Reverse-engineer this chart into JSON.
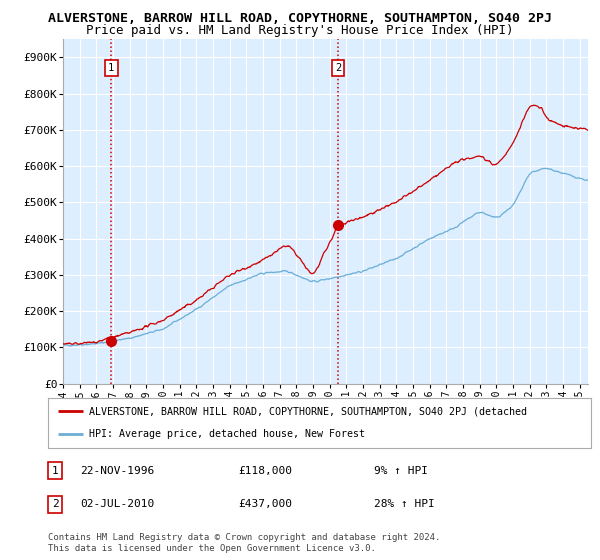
{
  "title1": "ALVERSTONE, BARROW HILL ROAD, COPYTHORNE, SOUTHAMPTON, SO40 2PJ",
  "title2": "Price paid vs. HM Land Registry's House Price Index (HPI)",
  "ylabel_ticks": [
    "£0",
    "£100K",
    "£200K",
    "£300K",
    "£400K",
    "£500K",
    "£600K",
    "£700K",
    "£800K",
    "£900K"
  ],
  "ytick_values": [
    0,
    100000,
    200000,
    300000,
    400000,
    500000,
    600000,
    700000,
    800000,
    900000
  ],
  "ylim": [
    0,
    950000
  ],
  "xlim_start": 1994.0,
  "xlim_end": 2025.5,
  "hpi_line_color": "#6baed6",
  "price_line_color": "#cc0000",
  "sale1_date": 1996.9,
  "sale1_price": 118000,
  "sale2_date": 2010.5,
  "sale2_price": 437000,
  "vline_color": "#cc0000",
  "background_color": "#ddeeff",
  "grid_color": "#ffffff",
  "legend_label1": "ALVERSTONE, BARROW HILL ROAD, COPYTHORNE, SOUTHAMPTON, SO40 2PJ (detached",
  "legend_label2": "HPI: Average price, detached house, New Forest",
  "table_row1": [
    "1",
    "22-NOV-1996",
    "£118,000",
    "9% ↑ HPI"
  ],
  "table_row2": [
    "2",
    "02-JUL-2010",
    "£437,000",
    "28% ↑ HPI"
  ],
  "footnote": "Contains HM Land Registry data © Crown copyright and database right 2024.\nThis data is licensed under the Open Government Licence v3.0.",
  "title_fontsize": 9.5,
  "subtitle_fontsize": 9,
  "tick_fontsize": 8,
  "hpi_key_years": [
    1994.0,
    1996.0,
    1998.0,
    2000.0,
    2002.0,
    2004.0,
    2006.0,
    2007.5,
    2009.0,
    2010.5,
    2012.0,
    2014.0,
    2016.0,
    2017.5,
    2019.0,
    2020.0,
    2021.0,
    2022.0,
    2023.0,
    2024.0,
    2025.5
  ],
  "hpi_key_vals": [
    105000,
    110000,
    125000,
    150000,
    205000,
    270000,
    305000,
    310000,
    280000,
    295000,
    310000,
    345000,
    400000,
    430000,
    475000,
    455000,
    490000,
    580000,
    595000,
    580000,
    560000
  ],
  "price_key_years": [
    1994.0,
    1995.0,
    1996.0,
    1997.0,
    1998.0,
    2000.0,
    2002.0,
    2004.0,
    2006.0,
    2007.5,
    2009.0,
    2010.5,
    2011.0,
    2012.0,
    2013.0,
    2014.0,
    2016.0,
    2017.5,
    2019.0,
    2020.0,
    2021.0,
    2022.0,
    2022.8,
    2023.0,
    2024.0,
    2025.5
  ],
  "price_key_vals": [
    108000,
    110000,
    115000,
    128000,
    140000,
    175000,
    230000,
    300000,
    340000,
    385000,
    295000,
    435000,
    445000,
    460000,
    480000,
    500000,
    560000,
    610000,
    630000,
    600000,
    660000,
    770000,
    760000,
    730000,
    710000,
    700000
  ]
}
